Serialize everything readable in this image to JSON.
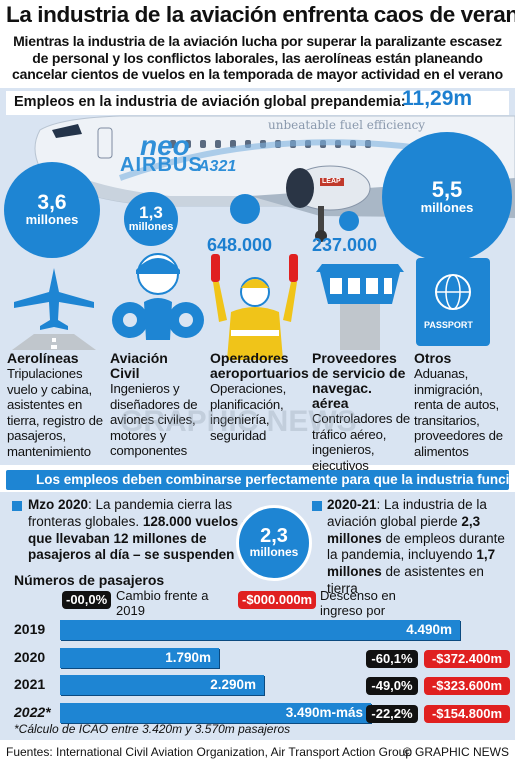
{
  "title": "La industria de la aviación enfrenta caos de verano",
  "subtitle": "Mientras la industria de la aviación lucha por superar la paralizante escasez de personal y los conflictos laborales, las aerolíneas están planeando cancelar cientos de vuelos en la temporada de mayor actividad en el verano",
  "employees": {
    "label": "Empleos en la industria de aviación global prepandemia:",
    "value": "11,29m"
  },
  "aircraft": {
    "brand": "AIRBUS",
    "model": "A321",
    "badge": "neo",
    "slogan": "unbeatable fuel efficiency",
    "engine_label": "LEAP"
  },
  "bubbles": [
    {
      "number": "3,6",
      "unit": "millones"
    },
    {
      "number": "1,3",
      "unit": "millones"
    },
    {
      "number": "648.000",
      "unit": ""
    },
    {
      "number": "237.000",
      "unit": ""
    },
    {
      "number": "5,5",
      "unit": "millones"
    }
  ],
  "categories": [
    {
      "title": "Aerolíneas",
      "body": "Tripulaciones vuelo y cabina, asistentes en tierra, registro de pasajeros, mantenimiento"
    },
    {
      "title": "Aviación Civil",
      "body": "Ingenieros y diseñadores de aviones civiles, motores y componentes"
    },
    {
      "title": "Operadores aeroportuarios",
      "body": "Operaciones, planificación, ingeniería, seguridad"
    },
    {
      "title": "Proveedores de servicio de navegac. aérea",
      "body": "Controladores de tráfico aéreo, ingenieros, ejecutivos"
    },
    {
      "title": "Otros",
      "body": "Aduanas, inmigración, renta de autos, transitarios, proveedores de alimentos"
    }
  ],
  "passport_label": "PASSPORT",
  "watermark": "GRAPHIC NEWS",
  "seamless": "Los empleos deben combinarse perfectamente para que la industria funcione",
  "note_left": {
    "date": "Mzo 2020",
    "text": ": La pandemia cierra las fronteras globales. ",
    "bold": "128.000 vuelos – que llevaban 12 millones de pasajeros al día – se suspenden"
  },
  "note_right": {
    "date": "2020-21",
    "text1": ": La industria de la aviación global pierde ",
    "bold1": "2,3 millones",
    "text2": " de empleos durante la pandemia, incluyendo ",
    "bold2": "1,7 millones",
    "text3": " de asistentes en tierra"
  },
  "center_bubble": {
    "number": "2,3",
    "unit": "millones"
  },
  "passengers": {
    "heading": "Números de pasajeros",
    "legend_change_pill": "-00,0%",
    "legend_change_text": "Cambio frente a 2019",
    "legend_loss_pill": "-$000.000m",
    "legend_loss_text": "Descenso en ingreso por pasajeros",
    "rows": [
      {
        "year": "2019",
        "label": "4.490m",
        "value": 4490,
        "change": "",
        "loss": ""
      },
      {
        "year": "2020",
        "label": "1.790m",
        "value": 1790,
        "change": "-60,1%",
        "loss": "-$372.400m"
      },
      {
        "year": "2021",
        "label": "2.290m",
        "value": 2290,
        "change": "-49,0%",
        "loss": "-$323.600m"
      },
      {
        "year": "2022*",
        "label": "3.490m-más",
        "value": 3490,
        "change": "-22,2%",
        "loss": "-$154.800m"
      }
    ],
    "footnote": "*Cálculo de ICAO entre 3.420m y 3.570m pasajeros"
  },
  "sources": "Fuentes: International Civil Aviation Organization, Air Transport Action Group",
  "brand": "© GRAPHIC NEWS",
  "colors": {
    "accent": "#1e85d3",
    "panel": "#d9e4f2",
    "negative": "#e02020"
  }
}
